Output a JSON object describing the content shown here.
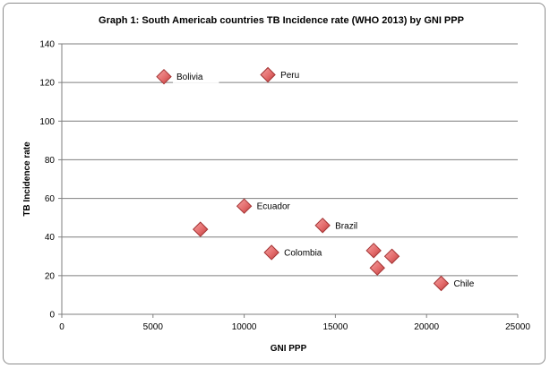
{
  "chart_data": {
    "type": "scatter",
    "title": "Graph 1: South Americab countries  TB Incidence  rate (WHO 2013) by GNI PPP",
    "xlabel": "GNI PPP",
    "ylabel": "TB Incidence rate",
    "xlim": [
      0,
      25000
    ],
    "ylim": [
      0,
      140
    ],
    "xticks": [
      "0",
      "5000",
      "10000",
      "15000",
      "20000",
      "25000"
    ],
    "yticks": [
      "0",
      "20",
      "40",
      "60",
      "80",
      "100",
      "120",
      "140"
    ],
    "grid": "horizontal",
    "legend": "none",
    "marker_color": "#e46c6c",
    "points": [
      {
        "x": 5600,
        "y": 123,
        "label": "Bolivia"
      },
      {
        "x": 11300,
        "y": 124,
        "label": "Peru"
      },
      {
        "x": 10000,
        "y": 56,
        "label": "Ecuador"
      },
      {
        "x": 7600,
        "y": 44,
        "label": ""
      },
      {
        "x": 14300,
        "y": 46,
        "label": "Brazil"
      },
      {
        "x": 11500,
        "y": 32,
        "label": "Colombia"
      },
      {
        "x": 17100,
        "y": 33,
        "label": ""
      },
      {
        "x": 18100,
        "y": 30,
        "label": ""
      },
      {
        "x": 17300,
        "y": 24,
        "label": ""
      },
      {
        "x": 20800,
        "y": 16,
        "label": "Chile"
      }
    ]
  }
}
